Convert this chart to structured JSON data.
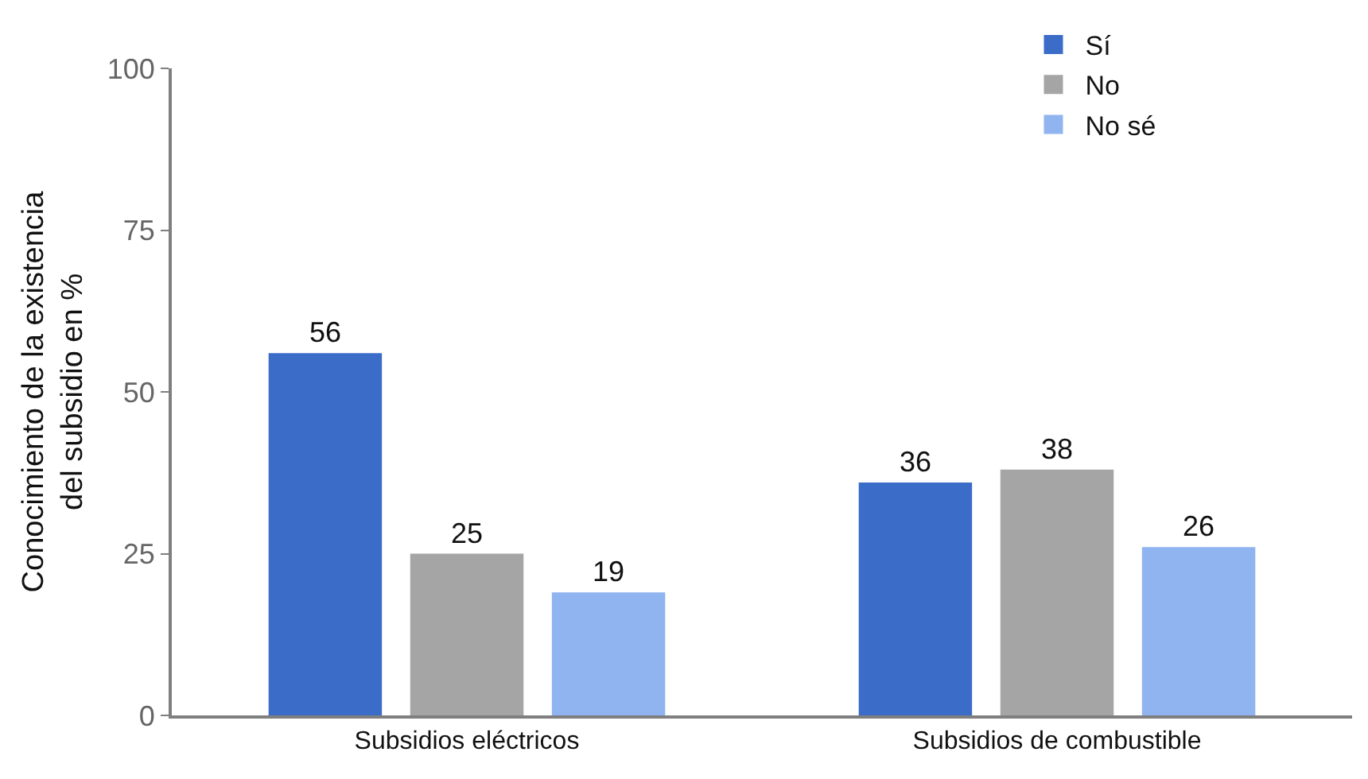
{
  "chart_data": {
    "type": "bar",
    "ylabel": "Conocimiento de la existencia\ndel subsidio en %",
    "categories": [
      "Subsidios eléctricos",
      "Subsidios de combustible"
    ],
    "series": [
      {
        "name": "Sí",
        "color": "#3a6cc8",
        "values": [
          56,
          36
        ]
      },
      {
        "name": "No",
        "color": "#a5a5a5",
        "values": [
          25,
          38
        ]
      },
      {
        "name": "No sé",
        "color": "#8fb4f0",
        "values": [
          19,
          26
        ]
      }
    ],
    "ylim": [
      0,
      100
    ],
    "yticks": [
      0,
      25,
      50,
      75,
      100
    ],
    "grid": false,
    "legend": "top right",
    "data_labels": true
  }
}
